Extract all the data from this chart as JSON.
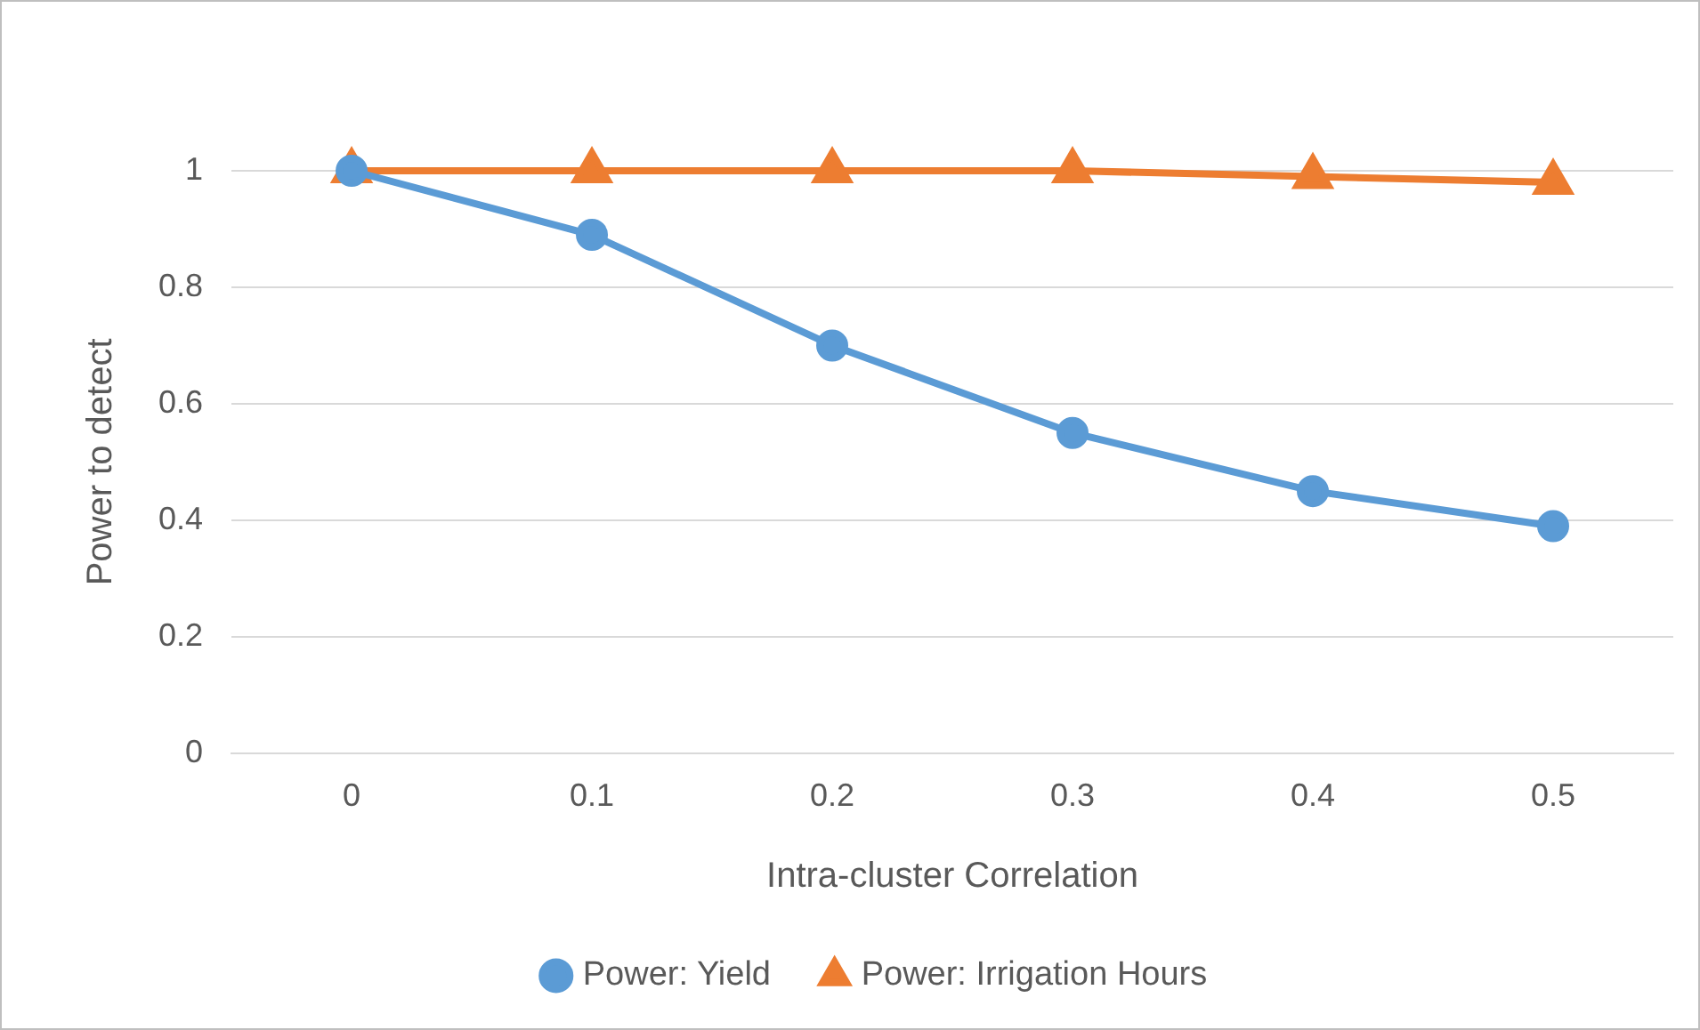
{
  "chart_data": {
    "type": "line",
    "xlabel": "Intra-cluster Correlation",
    "ylabel": "Power to detect",
    "categories": [
      "0",
      "0.1",
      "0.2",
      "0.3",
      "0.4",
      "0.5"
    ],
    "series": [
      {
        "name": "Power: Yield",
        "color": "#5b9bd5",
        "values": [
          1,
          0.89,
          0.7,
          0.55,
          0.45,
          0.39
        ],
        "marker": "circle"
      },
      {
        "name": "Power: Irrigation Hours",
        "color": "#ed7d31",
        "values": [
          1,
          1,
          1,
          1,
          0.99,
          0.98
        ],
        "marker": "triangle"
      }
    ],
    "ylim": [
      0,
      1
    ],
    "yticks": [
      0,
      0.2,
      0.4,
      0.6,
      0.8,
      1
    ],
    "grid": "y",
    "legend": "bottom",
    "line_style": "solid"
  }
}
